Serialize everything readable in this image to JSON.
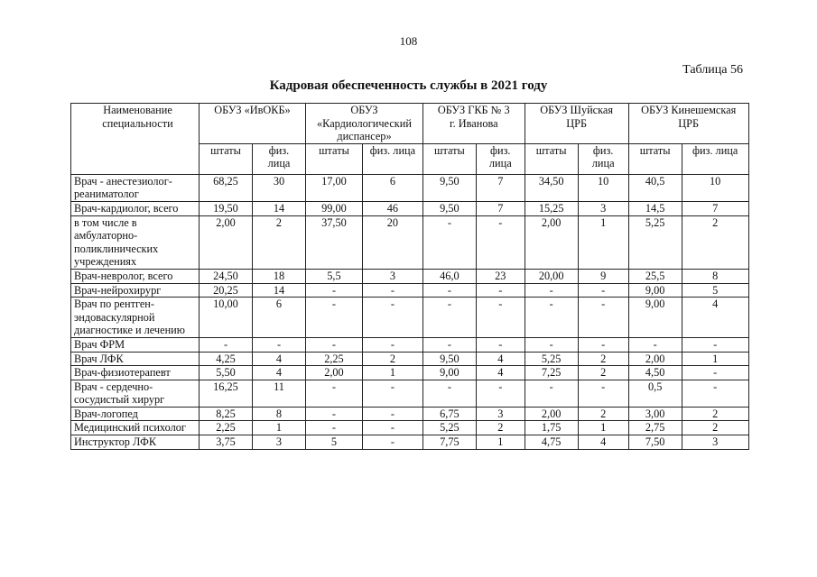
{
  "page_number": "108",
  "table_label": "Таблица 56",
  "title": "Кадровая обеспеченность службы в 2021 году",
  "header": {
    "specialty": "Наименование специальности",
    "orgs": [
      "ОБУЗ «ИвОКБ»",
      "ОБУЗ «Кардиологический диспансер»",
      "ОБУЗ ГКБ № 3 г. Иванова",
      "ОБУЗ Шуйская ЦРБ",
      "ОБУЗ Кинешемская ЦРБ"
    ],
    "sub": [
      "штаты",
      "физ. лица",
      "штаты",
      "физ. лица",
      "штаты",
      "физ. лица",
      "штаты",
      "физ. лица",
      "штаты",
      "физ. лица"
    ]
  },
  "rows": [
    {
      "name": "Врач - анестезиолог-реаниматолог",
      "v": [
        "68,25",
        "30",
        "17,00",
        "6",
        "9,50",
        "7",
        "34,50",
        "10",
        "40,5",
        "10"
      ]
    },
    {
      "name": "Врач-кардиолог, всего",
      "v": [
        "19,50",
        "14",
        "99,00",
        "46",
        "9,50",
        "7",
        "15,25",
        "3",
        "14,5",
        "7"
      ]
    },
    {
      "name": "в том числе в амбулаторно-поликлинических учреждениях",
      "v": [
        "2,00",
        "2",
        "37,50",
        "20",
        "-",
        "-",
        "2,00",
        "1",
        "5,25",
        "2"
      ]
    },
    {
      "name": "Врач-невролог, всего",
      "v": [
        "24,50",
        "18",
        "5,5",
        "3",
        "46,0",
        "23",
        "20,00",
        "9",
        "25,5",
        "8"
      ]
    },
    {
      "name": "Врач-нейрохирург",
      "v": [
        "20,25",
        "14",
        "-",
        "-",
        "-",
        "-",
        "-",
        "-",
        "9,00",
        "5"
      ]
    },
    {
      "name": "Врач по рентген-эндоваскулярной диагностике и лечению",
      "v": [
        "10,00",
        "6",
        "-",
        "-",
        "-",
        "-",
        "-",
        "-",
        "9,00",
        "4"
      ]
    },
    {
      "name": "Врач ФРМ",
      "v": [
        "-",
        "-",
        "-",
        "-",
        "-",
        "-",
        "-",
        "-",
        "-",
        "-"
      ]
    },
    {
      "name": "Врач ЛФК",
      "v": [
        "4,25",
        "4",
        "2,25",
        "2",
        "9,50",
        "4",
        "5,25",
        "2",
        "2,00",
        "1"
      ]
    },
    {
      "name": "Врач-физиотерапевт",
      "v": [
        "5,50",
        "4",
        "2,00",
        "1",
        "9,00",
        "4",
        "7,25",
        "2",
        "4,50",
        "-"
      ]
    },
    {
      "name": "Врач - сердечно-сосудистый хирург",
      "v": [
        "16,25",
        "11",
        "-",
        "-",
        "-",
        "-",
        "-",
        "-",
        "0,5",
        "-"
      ]
    },
    {
      "name": "Врач-логопед",
      "v": [
        "8,25",
        "8",
        "-",
        "-",
        "6,75",
        "3",
        "2,00",
        "2",
        "3,00",
        "2"
      ]
    },
    {
      "name": "Медицинский психолог",
      "v": [
        "2,25",
        "1",
        "-",
        "-",
        "5,25",
        "2",
        "1,75",
        "1",
        "2,75",
        "2"
      ]
    },
    {
      "name": "Инструктор ЛФК",
      "v": [
        "3,75",
        "3",
        "5",
        "-",
        "7,75",
        "1",
        "4,75",
        "4",
        "7,50",
        "3"
      ]
    }
  ]
}
